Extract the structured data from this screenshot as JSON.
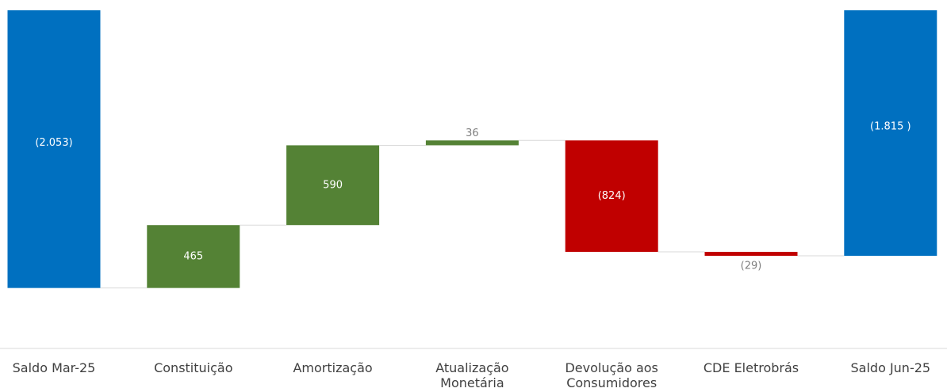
{
  "chart_data": {
    "type": "waterfall",
    "categories": [
      "Saldo Mar-25",
      "Constituição",
      "Amortização",
      "Atualização Monetária",
      "Devolução aos Consumidores",
      "CDE Eletrobrás",
      "Saldo Jun-25"
    ],
    "values": [
      -2053,
      465,
      590,
      36,
      -824,
      -29,
      -1815
    ],
    "value_labels": [
      "(2.053)",
      "465",
      "590",
      "36",
      "(824)",
      "(29)",
      "(1.815 )"
    ],
    "measure": [
      "absolute",
      "relative",
      "relative",
      "relative",
      "relative",
      "relative",
      "absolute"
    ],
    "colors": {
      "total": "#0070c0",
      "increase": "#548235",
      "decrease": "#c00000"
    },
    "ylim": [
      -2500,
      0
    ]
  }
}
